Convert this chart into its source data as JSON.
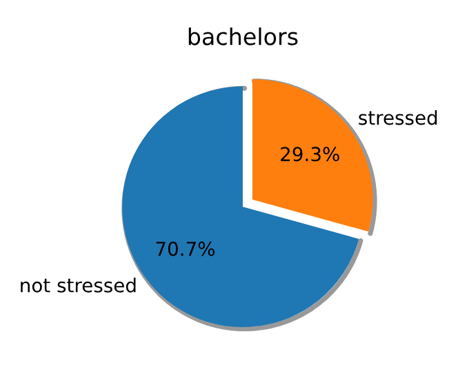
{
  "chart_data": {
    "type": "pie",
    "title": "bachelors",
    "categories": [
      "not stressed",
      "stressed"
    ],
    "values": [
      70.7,
      29.3
    ],
    "value_labels": [
      "70.7%",
      "29.3%"
    ],
    "colors": [
      "#1f77b4",
      "#ff7f0e"
    ]
  }
}
